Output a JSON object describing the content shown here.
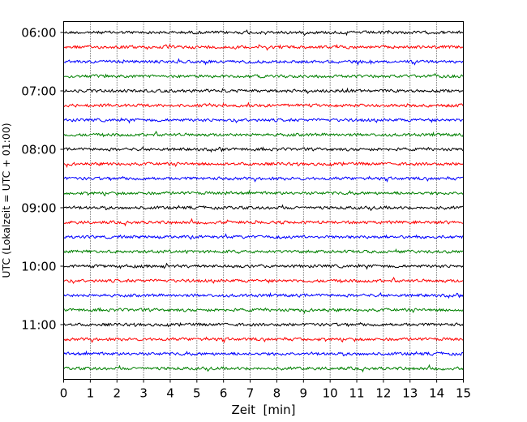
{
  "chart_data": {
    "type": "line",
    "title": "",
    "xlabel": "Zeit  [min]",
    "ylabel": "UTC (Lokalzeit = UTC + 01:00)",
    "x_ticks": [
      "0",
      "1",
      "2",
      "3",
      "4",
      "5",
      "6",
      "7",
      "8",
      "9",
      "10",
      "11",
      "12",
      "13",
      "14",
      "15"
    ],
    "xlim": [
      0,
      15
    ],
    "y_ticks": [
      "06:00",
      "07:00",
      "08:00",
      "09:00",
      "10:00",
      "11:00"
    ],
    "ylim": [
      "06:00",
      "12:00"
    ],
    "trace_interval_min": 15,
    "trace_start_times": [
      "06:00",
      "06:15",
      "06:30",
      "06:45",
      "07:00",
      "07:15",
      "07:30",
      "07:45",
      "08:00",
      "08:15",
      "08:30",
      "08:45",
      "09:00",
      "09:15",
      "09:30",
      "09:45",
      "10:00",
      "10:15",
      "10:30",
      "10:45",
      "11:00",
      "11:15",
      "11:30",
      "11:45"
    ],
    "colors": [
      "#000000",
      "#ff0000",
      "#0000ff",
      "#008000"
    ],
    "vertical_grid": "dotted, every minute",
    "legend": "none"
  }
}
